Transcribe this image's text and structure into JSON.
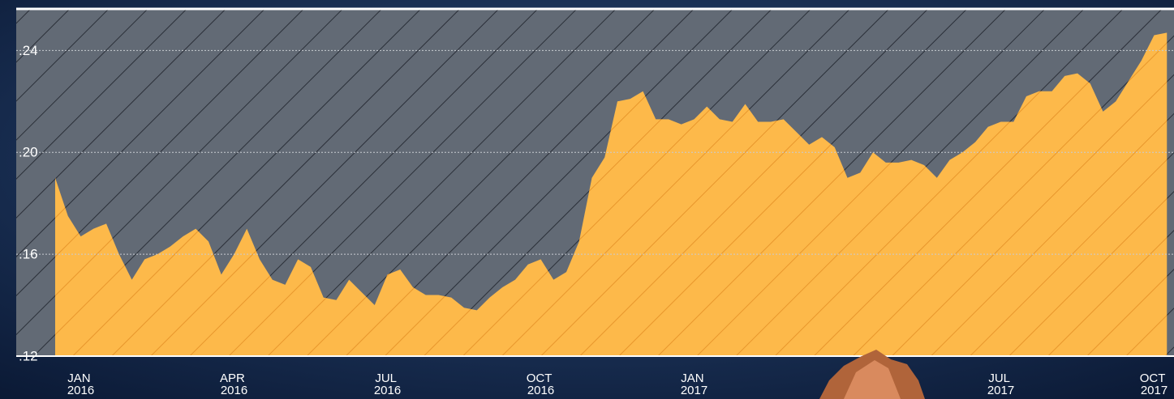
{
  "chart_data": {
    "type": "area",
    "categories": [
      null,
      null,
      "JAN 2016",
      null,
      null,
      null,
      null,
      null,
      null,
      null,
      null,
      null,
      null,
      null,
      "APR 2016",
      null,
      null,
      null,
      null,
      null,
      null,
      null,
      null,
      null,
      null,
      null,
      "JUL 2016",
      null,
      null,
      null,
      null,
      null,
      null,
      null,
      null,
      null,
      null,
      null,
      "OCT 2016",
      null,
      null,
      null,
      null,
      null,
      null,
      null,
      null,
      null,
      null,
      null,
      "JAN 2017",
      null,
      null,
      null,
      null,
      null,
      null,
      null,
      null,
      null,
      null,
      null,
      null,
      null,
      null,
      null,
      null,
      null,
      null,
      null,
      null,
      null,
      null,
      null,
      "JUL 2017",
      null,
      null,
      null,
      null,
      null,
      null,
      null,
      null,
      null,
      null,
      null,
      "OCT 2017",
      null
    ],
    "series": [
      {
        "color": "#fdb94a",
        "values": [
          0.19,
          0.175,
          0.167,
          0.17,
          0.172,
          0.16,
          0.15,
          0.158,
          0.16,
          0.163,
          0.167,
          0.17,
          0.165,
          0.152,
          0.16,
          0.17,
          0.158,
          0.15,
          0.148,
          0.158,
          0.155,
          0.143,
          0.142,
          0.15,
          0.145,
          0.14,
          0.152,
          0.154,
          0.147,
          0.144,
          0.144,
          0.143,
          0.139,
          0.138,
          0.143,
          0.147,
          0.15,
          0.156,
          0.158,
          0.15,
          0.153,
          0.165,
          0.19,
          0.198,
          0.22,
          0.221,
          0.224,
          0.213,
          0.213,
          0.211,
          0.213,
          0.218,
          0.213,
          0.212,
          0.219,
          0.212,
          0.212,
          0.213,
          0.208,
          0.203,
          0.206,
          0.202,
          0.19,
          0.192,
          0.2,
          0.196,
          0.196,
          0.197,
          0.195,
          0.19,
          0.197,
          0.2,
          0.204,
          0.21,
          0.212,
          0.212,
          0.222,
          0.224,
          0.224,
          0.23,
          0.231,
          0.227,
          0.216,
          0.22,
          0.228,
          0.236,
          0.246,
          0.247
        ]
      }
    ],
    "ylim": [
      0.12,
      0.256
    ],
    "yticks": [
      {
        "value": 0.12,
        "label": ".12"
      },
      {
        "value": 0.16,
        "label": ".16"
      },
      {
        "value": 0.2,
        "label": ".20"
      },
      {
        "value": 0.24,
        "label": ".24"
      }
    ],
    "grid": true
  }
}
